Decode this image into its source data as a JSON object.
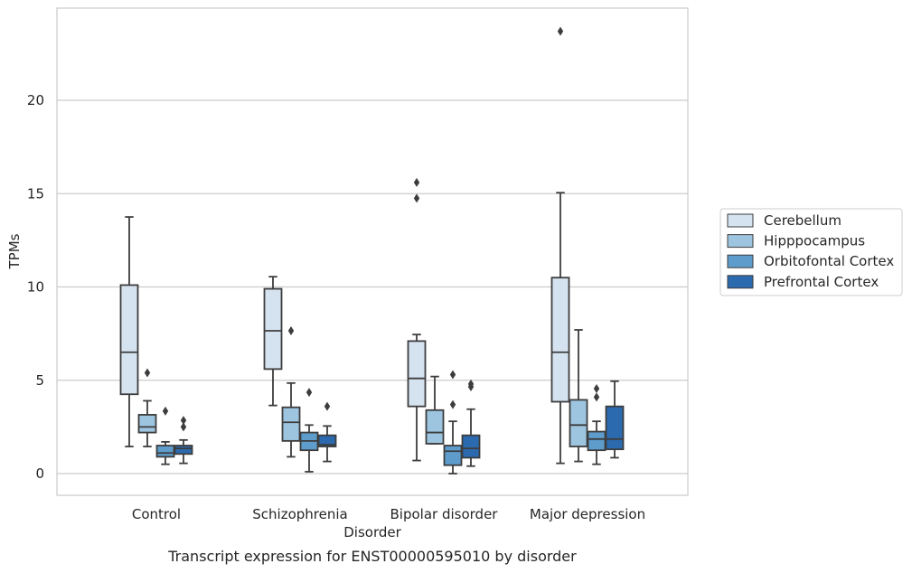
{
  "chart_data": {
    "type": "box",
    "title": "",
    "caption": "Transcript expression for ENST00000595010 by disorder",
    "xlabel": "Disorder",
    "ylabel": "TPMs",
    "ylim": [
      -1.1,
      24.8
    ],
    "yticks": [
      0,
      5,
      10,
      15,
      20
    ],
    "grid": true,
    "legend_position": "right",
    "categories": [
      "Control",
      "Schizophrenia",
      "Bipolar disorder",
      "Major depression"
    ],
    "series": [
      {
        "name": "Cerebellum",
        "color": "#d5e3f1",
        "boxes": [
          {
            "whisker_low": 1.45,
            "q1": 4.25,
            "median": 6.5,
            "q3": 10.1,
            "whisker_high": 13.75,
            "outliers": []
          },
          {
            "whisker_low": 3.65,
            "q1": 5.6,
            "median": 7.65,
            "q3": 9.9,
            "whisker_high": 10.55,
            "outliers": []
          },
          {
            "whisker_low": 0.7,
            "q1": 3.6,
            "median": 5.1,
            "q3": 7.1,
            "whisker_high": 7.45,
            "outliers": [
              14.75,
              15.6
            ]
          },
          {
            "whisker_low": 0.55,
            "q1": 3.85,
            "median": 6.5,
            "q3": 10.5,
            "whisker_high": 15.05,
            "outliers": [
              23.7
            ]
          }
        ]
      },
      {
        "name": "Hipppocampus",
        "color": "#9dc5df",
        "boxes": [
          {
            "whisker_low": 1.45,
            "q1": 2.2,
            "median": 2.5,
            "q3": 3.15,
            "whisker_high": 3.9,
            "outliers": [
              5.4
            ]
          },
          {
            "whisker_low": 0.9,
            "q1": 1.75,
            "median": 2.75,
            "q3": 3.55,
            "whisker_high": 4.85,
            "outliers": [
              7.65
            ]
          },
          {
            "whisker_low": 1.6,
            "q1": 1.6,
            "median": 2.2,
            "q3": 3.4,
            "whisker_high": 5.2,
            "outliers": []
          },
          {
            "whisker_low": 0.65,
            "q1": 1.45,
            "median": 2.6,
            "q3": 3.95,
            "whisker_high": 7.7,
            "outliers": []
          }
        ]
      },
      {
        "name": "Orbitofontal Cortex",
        "color": "#5e9ccb",
        "boxes": [
          {
            "whisker_low": 0.5,
            "q1": 0.9,
            "median": 1.1,
            "q3": 1.5,
            "whisker_high": 1.7,
            "outliers": [
              3.35
            ]
          },
          {
            "whisker_low": 0.1,
            "q1": 1.25,
            "median": 1.75,
            "q3": 2.2,
            "whisker_high": 2.6,
            "outliers": [
              4.35
            ]
          },
          {
            "whisker_low": 0.0,
            "q1": 0.45,
            "median": 1.2,
            "q3": 1.5,
            "whisker_high": 2.8,
            "outliers": [
              3.7,
              5.3
            ]
          },
          {
            "whisker_low": 0.5,
            "q1": 1.25,
            "median": 1.85,
            "q3": 2.25,
            "whisker_high": 2.8,
            "outliers": [
              4.1,
              4.55
            ]
          }
        ]
      },
      {
        "name": "Prefrontal Cortex",
        "color": "#2c6aaf",
        "boxes": [
          {
            "whisker_low": 0.55,
            "q1": 1.05,
            "median": 1.35,
            "q3": 1.5,
            "whisker_high": 1.8,
            "outliers": [
              2.5,
              2.85
            ]
          },
          {
            "whisker_low": 0.65,
            "q1": 1.45,
            "median": 1.55,
            "q3": 2.05,
            "whisker_high": 2.55,
            "outliers": [
              3.6
            ]
          },
          {
            "whisker_low": 0.4,
            "q1": 0.85,
            "median": 1.35,
            "q3": 2.05,
            "whisker_high": 3.45,
            "outliers": [
              4.65,
              4.8
            ]
          },
          {
            "whisker_low": 0.85,
            "q1": 1.3,
            "median": 1.85,
            "q3": 3.6,
            "whisker_high": 4.95,
            "outliers": []
          }
        ]
      }
    ]
  }
}
